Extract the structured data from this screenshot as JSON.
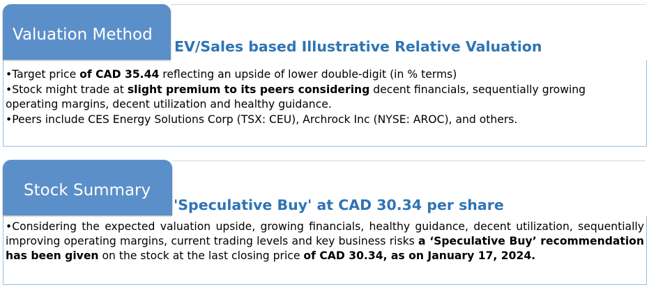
{
  "valuation": {
    "tab_label": "Valuation Method",
    "subtitle": "EV/Sales based Illustrative Relative Valuation",
    "bullets": [
      {
        "parts": [
          "•Target price ",
          "of CAD 35.44",
          " reflecting an upside of lower double-digit (in % terms)"
        ]
      },
      {
        "parts": [
          "•Stock might trade at ",
          "slight premium to its peers considering",
          " decent financials, sequentially growing operating margins, decent utilization and healthy guidance."
        ]
      },
      {
        "parts": [
          "•Peers include CES Energy Solutions Corp (TSX: CEU), Archrock Inc (NYSE: AROC), and others."
        ]
      }
    ]
  },
  "summary": {
    "tab_label": "Stock Summary",
    "subtitle": "'Speculative Buy' at CAD 30.34 per share",
    "bullet": {
      "parts": [
        "•Considering the expected valuation upside, growing financials, healthy guidance, decent utilization, sequentially improving operating margins, current trading levels and key business risks ",
        "a ‘Speculative Buy’ recommendation has been given",
        " on the stock at the last closing price ",
        "of CAD 30.34, as on January 17, 2024."
      ]
    }
  },
  "colors": {
    "tab_bg": "#5b8fc9",
    "subtitle": "#2e74b5",
    "frame": "#9bbbd9"
  }
}
